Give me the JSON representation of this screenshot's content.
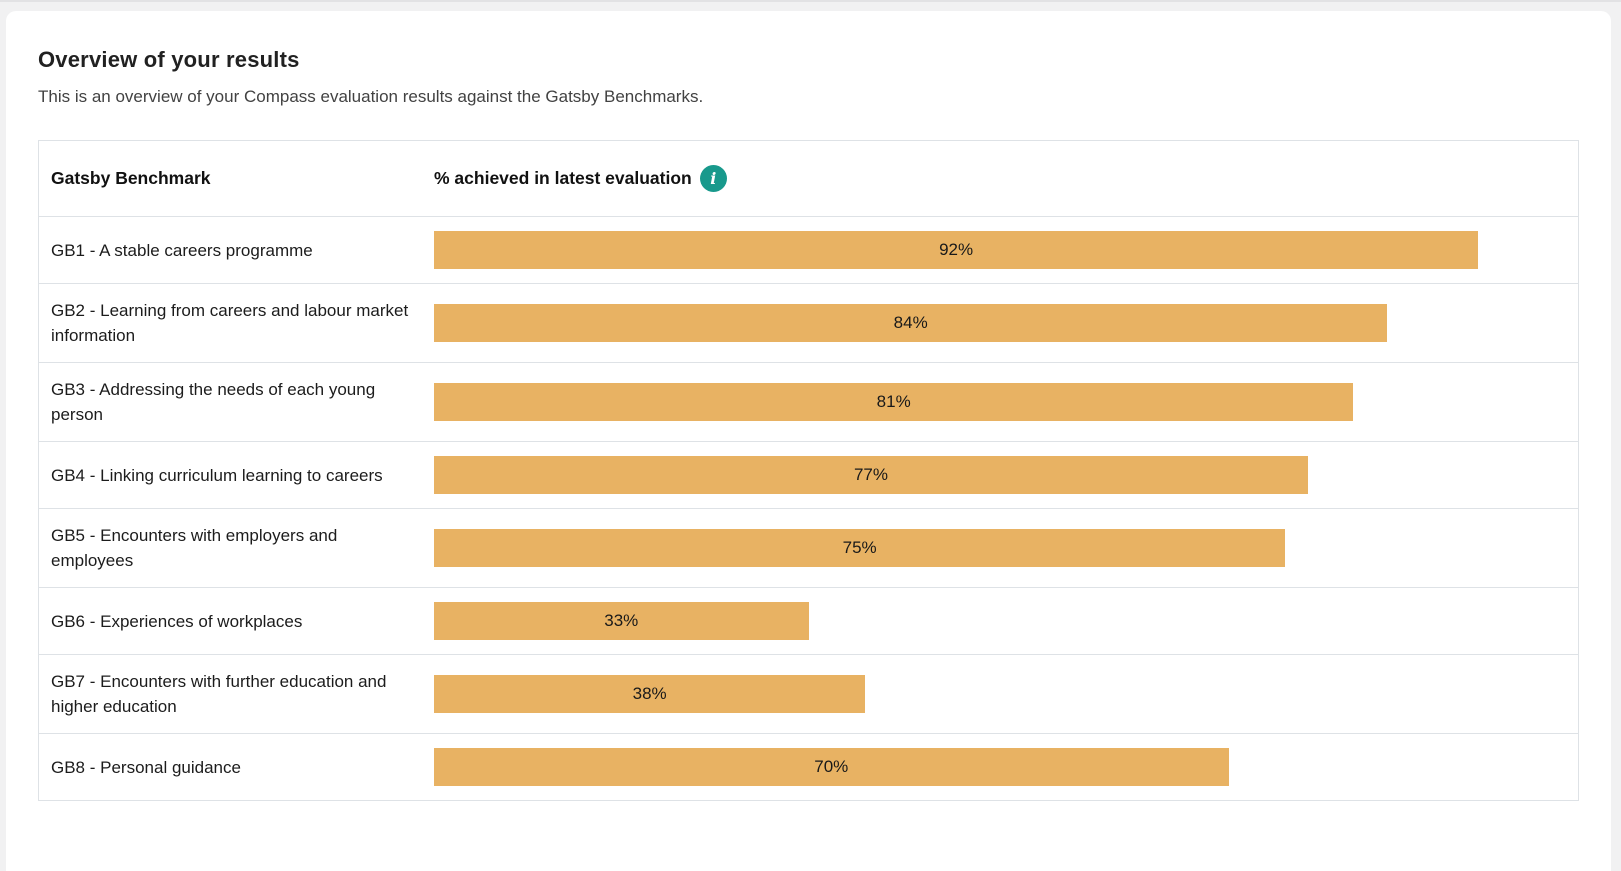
{
  "header": {
    "title": "Overview of your results",
    "subtitle": "This is an overview of your Compass evaluation results against the Gatsby Benchmarks."
  },
  "table": {
    "columns": [
      "Gatsby Benchmark",
      "% achieved in latest evaluation"
    ],
    "info_icon_glyph": "i"
  },
  "chart_data": {
    "type": "bar",
    "orientation": "horizontal",
    "title": "% achieved in latest evaluation",
    "xlabel": "% achieved",
    "ylabel": "Gatsby Benchmark",
    "xlim": [
      0,
      100
    ],
    "grid": false,
    "legend": false,
    "bar_color": "#e8b263",
    "categories": [
      "GB1 - A stable careers programme",
      "GB2 - Learning from careers and labour market information",
      "GB3 - Addressing the needs of each young person",
      "GB4 - Linking curriculum learning to careers",
      "GB5 - Encounters with employers and employees",
      "GB6 - Experiences of workplaces",
      "GB7 - Encounters with further education and higher education",
      "GB8 - Personal guidance"
    ],
    "values": [
      92,
      84,
      81,
      77,
      75,
      33,
      38,
      70
    ],
    "value_labels": [
      "92%",
      "84%",
      "81%",
      "77%",
      "75%",
      "33%",
      "38%",
      "70%"
    ]
  },
  "colors": {
    "bar": "#e8b263",
    "info_icon_bg": "#18998c",
    "table_border": "#dee2e6",
    "title_text": "#212121",
    "body_text": "#424242",
    "page_background": "#f1f1f2",
    "card_background": "#ffffff"
  }
}
